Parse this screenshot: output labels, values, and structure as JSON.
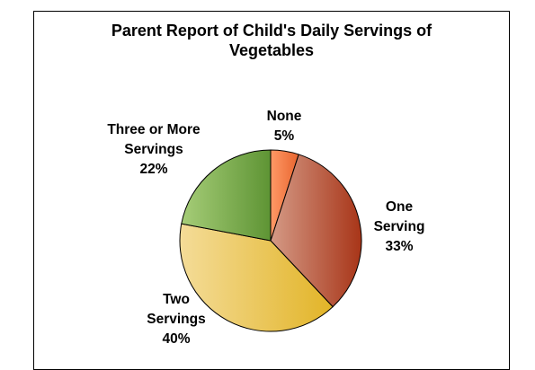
{
  "chart_data": {
    "type": "pie",
    "title_lines": [
      "Parent Report of Child's Daily Servings of",
      "Vegetables"
    ],
    "slices": [
      {
        "label_lines": [
          "None"
        ],
        "percent_label": "5%",
        "value": 5,
        "colors": {
          "light": "#ff9966",
          "dark": "#e8652f"
        }
      },
      {
        "label_lines": [
          "One",
          "Serving"
        ],
        "percent_label": "33%",
        "value": 33,
        "colors": {
          "light": "#d49a86",
          "dark": "#a83518"
        }
      },
      {
        "label_lines": [
          "Two",
          "Servings"
        ],
        "percent_label": "40%",
        "value": 40,
        "colors": {
          "light": "#f4dc98",
          "dark": "#e2b427"
        }
      },
      {
        "label_lines": [
          "Three or More",
          "Servings"
        ],
        "percent_label": "22%",
        "value": 22,
        "colors": {
          "light": "#a6cd78",
          "dark": "#5e9434"
        }
      }
    ]
  }
}
